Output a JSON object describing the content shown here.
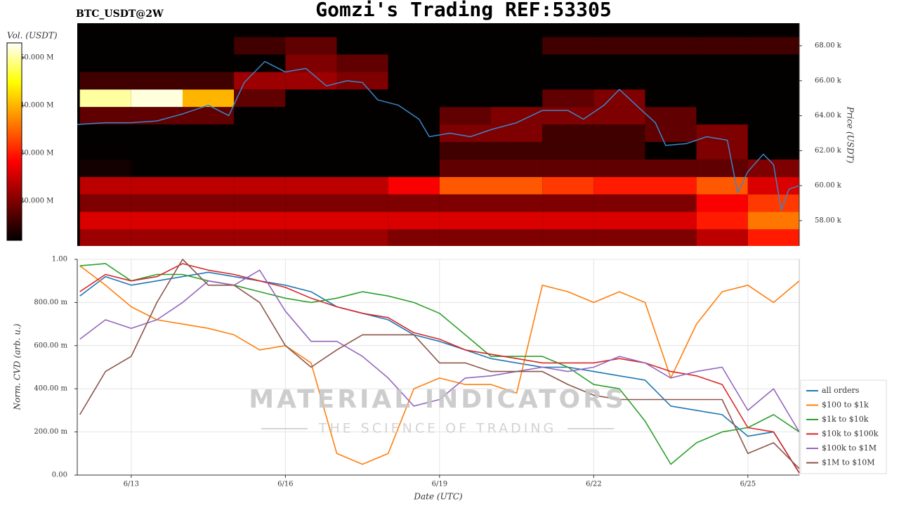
{
  "header": {
    "title": "Gomzi's Trading REF:53305",
    "symbol": "BTC_USDT@2W"
  },
  "watermark": {
    "main": "MATERIAL INDICATORS",
    "tagline": "THE SCIENCE OF TRADING"
  },
  "chart_data": [
    {
      "type": "heatmap",
      "x_edges": [
        12,
        13,
        14,
        15,
        16,
        17,
        18,
        19,
        20,
        21,
        22,
        23,
        24,
        25,
        26
      ],
      "y_edges": [
        56500,
        57500,
        58500,
        59500,
        60500,
        61500,
        62500,
        63500,
        64500,
        65500,
        66500,
        67500,
        68500,
        69300
      ],
      "values": [
        [
          22000000,
          22000000,
          22000000,
          22000000,
          22000000,
          22000000,
          20000000,
          20000000,
          20000000,
          20000000,
          20000000,
          20000000,
          24000000,
          30000000
        ],
        [
          26000000,
          26000000,
          26000000,
          26000000,
          26000000,
          26000000,
          26000000,
          26000000,
          26000000,
          26000000,
          26000000,
          26000000,
          30000000,
          36000000
        ],
        [
          20000000,
          20000000,
          20000000,
          20000000,
          20000000,
          20000000,
          20000000,
          20000000,
          20000000,
          20000000,
          20000000,
          20000000,
          28000000,
          32000000
        ],
        [
          24000000,
          24000000,
          24000000,
          24000000,
          24000000,
          24000000,
          28000000,
          34000000,
          34000000,
          32000000,
          30000000,
          30000000,
          34000000,
          26000000
        ],
        [
          13000000,
          12000000,
          12000000,
          12000000,
          12000000,
          12000000,
          12000000,
          18000000,
          18000000,
          18000000,
          18000000,
          18000000,
          18000000,
          20000000
        ],
        [
          12000000,
          12000000,
          12000000,
          12000000,
          12000000,
          12000000,
          12000000,
          16000000,
          16000000,
          16000000,
          16000000,
          12000000,
          20000000,
          12000000
        ],
        [
          12000000,
          12000000,
          12000000,
          12000000,
          12000000,
          12000000,
          12000000,
          20000000,
          20000000,
          16000000,
          16000000,
          18000000,
          20000000,
          12000000
        ],
        [
          18000000,
          18000000,
          18000000,
          12000000,
          12000000,
          12000000,
          12000000,
          18000000,
          20000000,
          20000000,
          20000000,
          18000000,
          12000000,
          12000000
        ],
        [
          50000000,
          52000000,
          40000000,
          18000000,
          12000000,
          12000000,
          12000000,
          12000000,
          12000000,
          18000000,
          20000000,
          12000000,
          12000000,
          12000000
        ],
        [
          16000000,
          16000000,
          16000000,
          22000000,
          22000000,
          20000000,
          12000000,
          12000000,
          12000000,
          12000000,
          12000000,
          12000000,
          12000000,
          12000000
        ],
        [
          12000000,
          12000000,
          12000000,
          12000000,
          20000000,
          18000000,
          12000000,
          12000000,
          12000000,
          12000000,
          12000000,
          12000000,
          12000000,
          12000000
        ],
        [
          12000000,
          12000000,
          12000000,
          16000000,
          18000000,
          12000000,
          12000000,
          12000000,
          12000000,
          16000000,
          16000000,
          16000000,
          16000000,
          16000000
        ],
        [
          12000000,
          12000000,
          12000000,
          12000000,
          12000000,
          12000000,
          12000000,
          12000000,
          12000000,
          12000000,
          12000000,
          12000000,
          12000000,
          12000000
        ]
      ],
      "colorbar": {
        "label": "Vol. (USDT)",
        "lim": [
          11800000,
          53100000
        ],
        "ticks": [
          {
            "value": 20000000,
            "label": "20.000 M"
          },
          {
            "value": 30000000,
            "label": "30.000 M"
          },
          {
            "value": 40000000,
            "label": "40.000 M"
          },
          {
            "value": 50000000,
            "label": "50.000 M"
          }
        ]
      },
      "series": [
        {
          "color": "#3a87c8",
          "x": [
            11.95,
            12.5,
            13,
            13.5,
            14,
            14.5,
            14.9,
            15.2,
            15.6,
            16,
            16.4,
            16.8,
            17.2,
            17.5,
            17.8,
            18.2,
            18.6,
            18.8,
            19.2,
            19.6,
            20,
            20.5,
            21,
            21.5,
            21.8,
            22.2,
            22.5,
            22.9,
            23.2,
            23.4,
            23.8,
            24.2,
            24.6,
            24.8,
            25,
            25.3,
            25.5,
            25.65,
            25.8,
            26
          ],
          "values": [
            63500,
            63600,
            63600,
            63700,
            64100,
            64600,
            64000,
            65900,
            67100,
            66500,
            66700,
            65700,
            66000,
            65900,
            64900,
            64600,
            63800,
            62800,
            63000,
            62800,
            63200,
            63600,
            64300,
            64300,
            63800,
            64600,
            65500,
            64400,
            63600,
            62300,
            62400,
            62800,
            62600,
            59600,
            60800,
            61800,
            61200,
            58600,
            59800,
            60000
          ]
        }
      ],
      "xlim": [
        11.95,
        26.0
      ],
      "ylim": [
        56550,
        69290
      ],
      "yticks": [
        {
          "value": 58000,
          "label": "58.00 k"
        },
        {
          "value": 60000,
          "label": "60.00 k"
        },
        {
          "value": 62000,
          "label": "62.00 k"
        },
        {
          "value": 64000,
          "label": "64.00 k"
        },
        {
          "value": 66000,
          "label": "66.00 k"
        },
        {
          "value": 68000,
          "label": "68.00 k"
        }
      ],
      "ylabel": "Price (USDT)"
    },
    {
      "type": "line",
      "x": [
        12,
        12.5,
        13,
        13.5,
        14,
        14.5,
        15,
        15.5,
        16,
        16.5,
        17,
        17.5,
        18,
        18.5,
        19,
        19.5,
        20,
        20.5,
        21,
        21.5,
        22,
        22.5,
        23,
        23.5,
        24,
        24.5,
        25,
        25.5,
        26
      ],
      "series": [
        {
          "name": "all orders",
          "color": "#1f77b4",
          "values": [
            0.83,
            0.92,
            0.88,
            0.9,
            0.92,
            0.94,
            0.92,
            0.9,
            0.88,
            0.85,
            0.78,
            0.75,
            0.72,
            0.65,
            0.62,
            0.58,
            0.54,
            0.52,
            0.5,
            0.5,
            0.48,
            0.46,
            0.44,
            0.32,
            0.3,
            0.28,
            0.18,
            0.2,
            0.01
          ]
        },
        {
          "name": "$100 to $1k",
          "color": "#ff7f0e",
          "values": [
            0.97,
            0.88,
            0.78,
            0.72,
            0.7,
            0.68,
            0.65,
            0.58,
            0.6,
            0.52,
            0.1,
            0.05,
            0.1,
            0.4,
            0.45,
            0.42,
            0.42,
            0.38,
            0.88,
            0.85,
            0.8,
            0.85,
            0.8,
            0.45,
            0.7,
            0.85,
            0.88,
            0.8,
            0.9
          ]
        },
        {
          "name": "$1k to $10k",
          "color": "#2ca02c",
          "values": [
            0.97,
            0.98,
            0.9,
            0.93,
            0.93,
            0.9,
            0.88,
            0.85,
            0.82,
            0.8,
            0.82,
            0.85,
            0.83,
            0.8,
            0.75,
            0.65,
            0.55,
            0.55,
            0.55,
            0.5,
            0.42,
            0.4,
            0.25,
            0.05,
            0.15,
            0.2,
            0.22,
            0.28,
            0.2
          ]
        },
        {
          "name": "$10k to $100k",
          "color": "#d62728",
          "values": [
            0.85,
            0.93,
            0.9,
            0.92,
            0.98,
            0.95,
            0.93,
            0.9,
            0.87,
            0.82,
            0.78,
            0.75,
            0.73,
            0.66,
            0.63,
            0.58,
            0.56,
            0.54,
            0.52,
            0.52,
            0.52,
            0.54,
            0.52,
            0.48,
            0.46,
            0.42,
            0.22,
            0.2,
            0.01
          ]
        },
        {
          "name": "$100k to $1M",
          "color": "#9467bd",
          "values": [
            0.63,
            0.72,
            0.68,
            0.72,
            0.8,
            0.9,
            0.88,
            0.95,
            0.76,
            0.62,
            0.62,
            0.55,
            0.45,
            0.32,
            0.35,
            0.45,
            0.46,
            0.48,
            0.5,
            0.48,
            0.5,
            0.55,
            0.52,
            0.45,
            0.48,
            0.5,
            0.3,
            0.4,
            0.2
          ]
        },
        {
          "name": "$1M to $10M",
          "color": "#8c564b",
          "values": [
            0.28,
            0.48,
            0.55,
            0.8,
            1.0,
            0.88,
            0.88,
            0.8,
            0.6,
            0.5,
            0.58,
            0.65,
            0.65,
            0.65,
            0.52,
            0.52,
            0.48,
            0.48,
            0.48,
            0.42,
            0.37,
            0.35,
            0.35,
            0.35,
            0.35,
            0.35,
            0.1,
            0.15,
            0.03
          ]
        }
      ],
      "xlim": [
        11.95,
        26.0
      ],
      "ylim": [
        0,
        1
      ],
      "xticks": [
        {
          "value": 13,
          "label": "6/13"
        },
        {
          "value": 16,
          "label": "6/16"
        },
        {
          "value": 19,
          "label": "6/19"
        },
        {
          "value": 22,
          "label": "6/22"
        },
        {
          "value": 25,
          "label": "6/25"
        }
      ],
      "yticks": [
        {
          "value": 0,
          "label": "0.00"
        },
        {
          "value": 0.2,
          "label": "200.00 m"
        },
        {
          "value": 0.4,
          "label": "400.00 m"
        },
        {
          "value": 0.6,
          "label": "600.00 m"
        },
        {
          "value": 0.8,
          "label": "800.00 m"
        },
        {
          "value": 1,
          "label": "1.00"
        }
      ],
      "xlabel": "Date (UTC)",
      "ylabel": "Norm. CVD (arb. u.)",
      "grid": true,
      "legend": "right"
    }
  ]
}
